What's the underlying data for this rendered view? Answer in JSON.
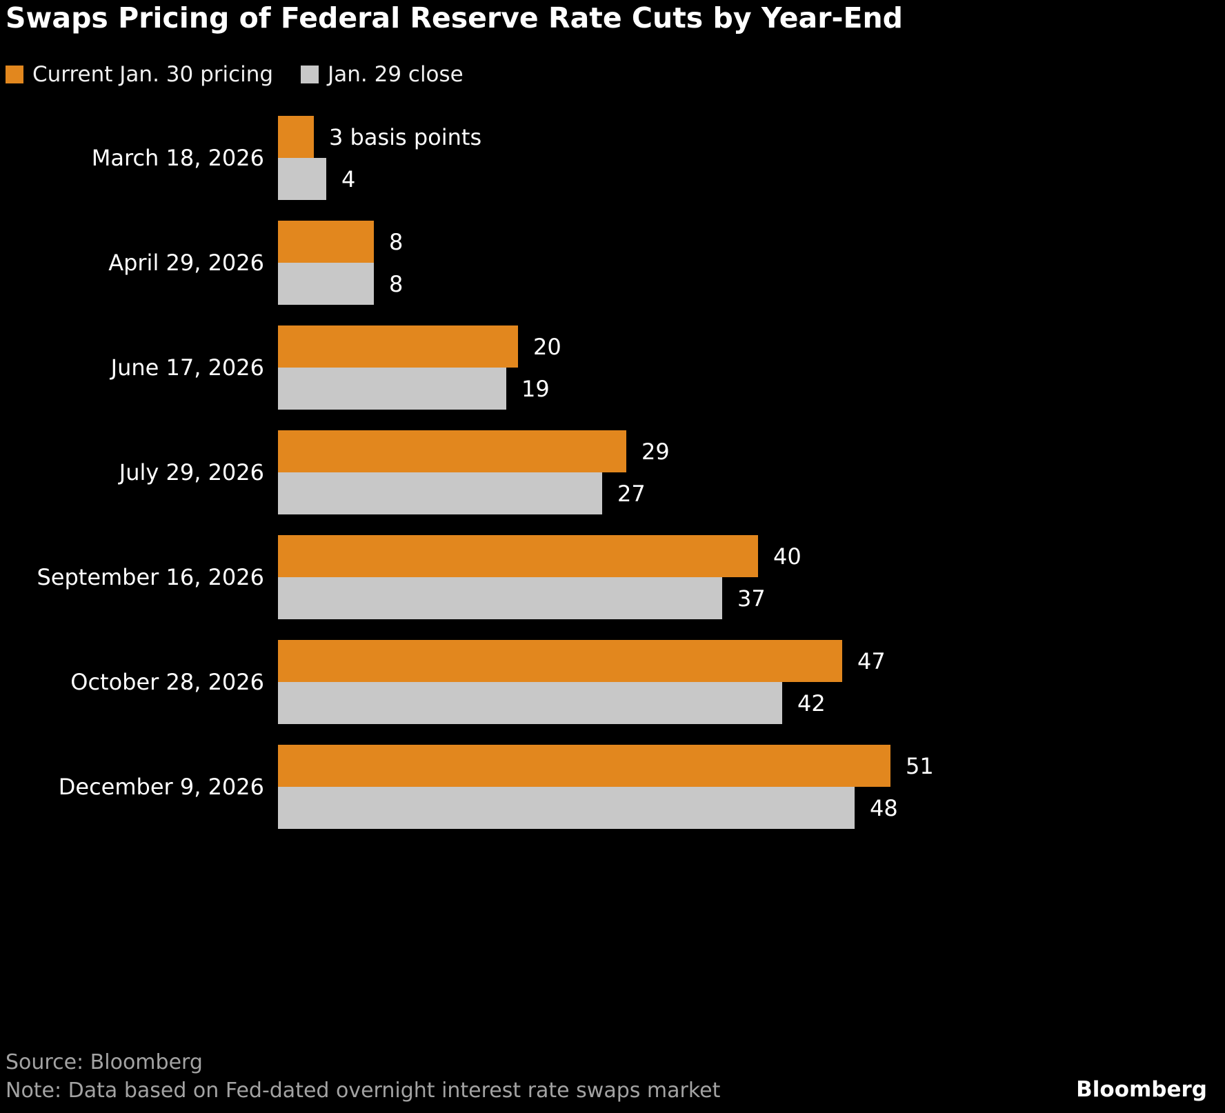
{
  "chart_data": {
    "type": "bar",
    "orientation": "horizontal",
    "title": "Swaps Pricing of Federal Reserve Rate Cuts by Year-End",
    "xlabel": "",
    "ylabel": "",
    "xlim": [
      0,
      51
    ],
    "grid": false,
    "legend_position": "top-left",
    "unit": "basis points",
    "categories": [
      "March 18, 2026",
      "April 29, 2026",
      "June 17, 2026",
      "July 29, 2026",
      "September 16, 2026",
      "October 28, 2026",
      "December 9, 2026"
    ],
    "series": [
      {
        "name": "Current Jan. 30 pricing",
        "color": "#E2871E",
        "values": [
          3,
          8,
          20,
          29,
          40,
          47,
          51
        ],
        "labels": [
          "3 basis points",
          "8",
          "20",
          "29",
          "40",
          "47",
          "51"
        ]
      },
      {
        "name": "Jan. 29 close",
        "color": "#C8C8C8",
        "values": [
          4,
          8,
          19,
          27,
          37,
          42,
          48
        ],
        "labels": [
          "4",
          "8",
          "19",
          "27",
          "37",
          "42",
          "48"
        ]
      }
    ]
  },
  "footer": {
    "source": "Source: Bloomberg",
    "note": "Note: Data based on Fed-dated overnight interest rate swaps market"
  },
  "branding": {
    "logo_text": "Bloomberg"
  }
}
